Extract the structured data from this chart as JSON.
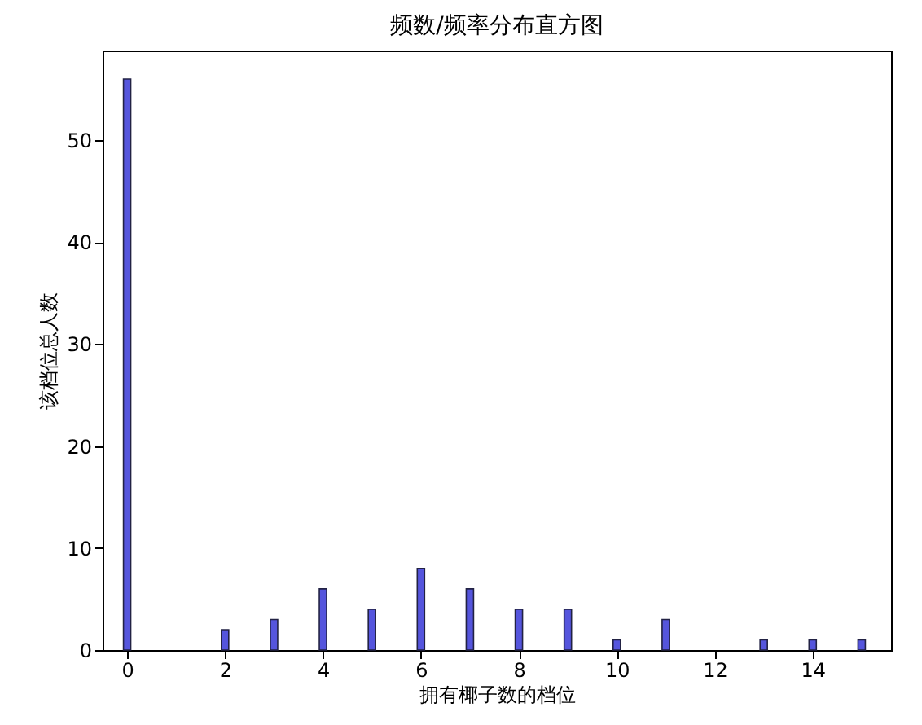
{
  "chart_data": {
    "type": "bar",
    "title": "频数/频率分布直方图",
    "xlabel": "拥有椰子数的档位",
    "ylabel": "该档位总人数",
    "x": [
      0,
      2,
      3,
      4,
      5,
      6,
      7,
      8,
      9,
      10,
      11,
      13,
      14,
      15
    ],
    "values": [
      56,
      2,
      3,
      6,
      4,
      8,
      6,
      4,
      4,
      1,
      3,
      1,
      1,
      1
    ],
    "color": "#5555dd",
    "xlim": [
      -0.5,
      15.6
    ],
    "xticks": [
      0,
      2,
      4,
      6,
      8,
      10,
      12,
      14
    ],
    "ylim": [
      0,
      58.8
    ],
    "yticks": [
      0,
      10,
      20,
      30,
      40,
      50
    ],
    "grid": false
  }
}
